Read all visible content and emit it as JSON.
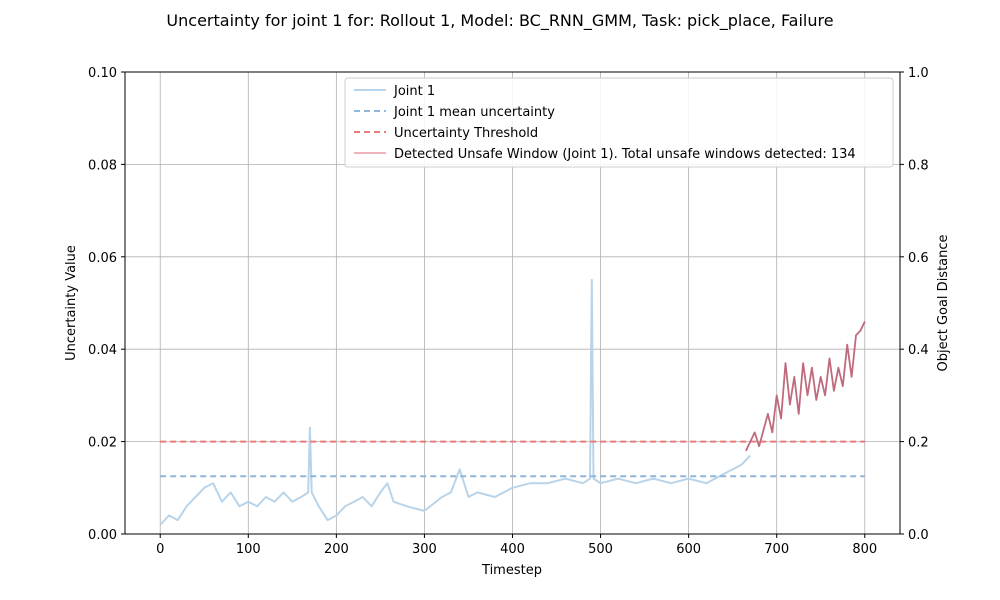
{
  "chart_data": {
    "type": "line",
    "title": "Uncertainty for joint 1 for: Rollout 1, Model: BC_RNN_GMM, Task: pick_place, Failure",
    "xlabel": "Timestep",
    "ylabel": "Uncertainty Value",
    "y2label": "Object Goal Distance",
    "xlim": [
      -40,
      840
    ],
    "ylim": [
      0,
      0.1
    ],
    "y2lim": [
      0,
      1.0
    ],
    "xticks": [
      "0",
      "100",
      "200",
      "300",
      "400",
      "500",
      "600",
      "700",
      "800"
    ],
    "yticks": [
      "0.00",
      "0.02",
      "0.04",
      "0.06",
      "0.08",
      "0.10"
    ],
    "y2ticks": [
      "0.0",
      "0.2",
      "0.4",
      "0.6",
      "0.8",
      "1.0"
    ],
    "grid": true,
    "legend_position": "top-right",
    "colors": {
      "joint": "#b8d4ea",
      "mean": "#8fb5d8",
      "threshold": "#ec7a7a",
      "unsafe": "#c06a7c",
      "grid": "#b0b0b0"
    },
    "series": [
      {
        "name": "Joint 1",
        "style": "solid",
        "points": [
          [
            0,
            0.002
          ],
          [
            10,
            0.004
          ],
          [
            20,
            0.003
          ],
          [
            30,
            0.006
          ],
          [
            40,
            0.008
          ],
          [
            50,
            0.01
          ],
          [
            60,
            0.011
          ],
          [
            70,
            0.007
          ],
          [
            80,
            0.009
          ],
          [
            90,
            0.006
          ],
          [
            100,
            0.007
          ],
          [
            110,
            0.006
          ],
          [
            120,
            0.008
          ],
          [
            130,
            0.007
          ],
          [
            140,
            0.009
          ],
          [
            150,
            0.007
          ],
          [
            160,
            0.008
          ],
          [
            168,
            0.009
          ],
          [
            170,
            0.023
          ],
          [
            172,
            0.009
          ],
          [
            180,
            0.006
          ],
          [
            190,
            0.003
          ],
          [
            200,
            0.004
          ],
          [
            210,
            0.006
          ],
          [
            220,
            0.007
          ],
          [
            230,
            0.008
          ],
          [
            240,
            0.006
          ],
          [
            250,
            0.009
          ],
          [
            258,
            0.011
          ],
          [
            265,
            0.007
          ],
          [
            280,
            0.006
          ],
          [
            300,
            0.005
          ],
          [
            320,
            0.008
          ],
          [
            330,
            0.009
          ],
          [
            340,
            0.014
          ],
          [
            350,
            0.008
          ],
          [
            360,
            0.009
          ],
          [
            380,
            0.008
          ],
          [
            390,
            0.009
          ],
          [
            400,
            0.01
          ],
          [
            420,
            0.011
          ],
          [
            440,
            0.011
          ],
          [
            460,
            0.012
          ],
          [
            480,
            0.011
          ],
          [
            488,
            0.012
          ],
          [
            490,
            0.055
          ],
          [
            492,
            0.012
          ],
          [
            500,
            0.011
          ],
          [
            520,
            0.012
          ],
          [
            540,
            0.011
          ],
          [
            560,
            0.012
          ],
          [
            580,
            0.011
          ],
          [
            600,
            0.012
          ],
          [
            620,
            0.011
          ],
          [
            640,
            0.013
          ],
          [
            660,
            0.015
          ],
          [
            670,
            0.017
          ]
        ]
      },
      {
        "name": "Joint 1 mean uncertainty",
        "style": "dashed",
        "points": [
          [
            0,
            0.0125
          ],
          [
            800,
            0.0125
          ]
        ]
      },
      {
        "name": "Uncertainty Threshold",
        "style": "dashed",
        "points": [
          [
            0,
            0.02
          ],
          [
            800,
            0.02
          ]
        ]
      },
      {
        "name": "Detected Unsafe Window (Joint 1). Total unsafe windows detected: 134",
        "style": "solid",
        "points": [
          [
            665,
            0.018
          ],
          [
            675,
            0.022
          ],
          [
            680,
            0.019
          ],
          [
            690,
            0.026
          ],
          [
            695,
            0.022
          ],
          [
            700,
            0.03
          ],
          [
            705,
            0.025
          ],
          [
            710,
            0.037
          ],
          [
            715,
            0.028
          ],
          [
            720,
            0.034
          ],
          [
            725,
            0.026
          ],
          [
            730,
            0.037
          ],
          [
            735,
            0.03
          ],
          [
            740,
            0.036
          ],
          [
            745,
            0.029
          ],
          [
            750,
            0.034
          ],
          [
            755,
            0.03
          ],
          [
            760,
            0.038
          ],
          [
            765,
            0.031
          ],
          [
            770,
            0.036
          ],
          [
            775,
            0.032
          ],
          [
            780,
            0.041
          ],
          [
            785,
            0.034
          ],
          [
            790,
            0.043
          ],
          [
            795,
            0.044
          ],
          [
            800,
            0.046
          ]
        ]
      }
    ],
    "unsafe_window_count": 134
  }
}
